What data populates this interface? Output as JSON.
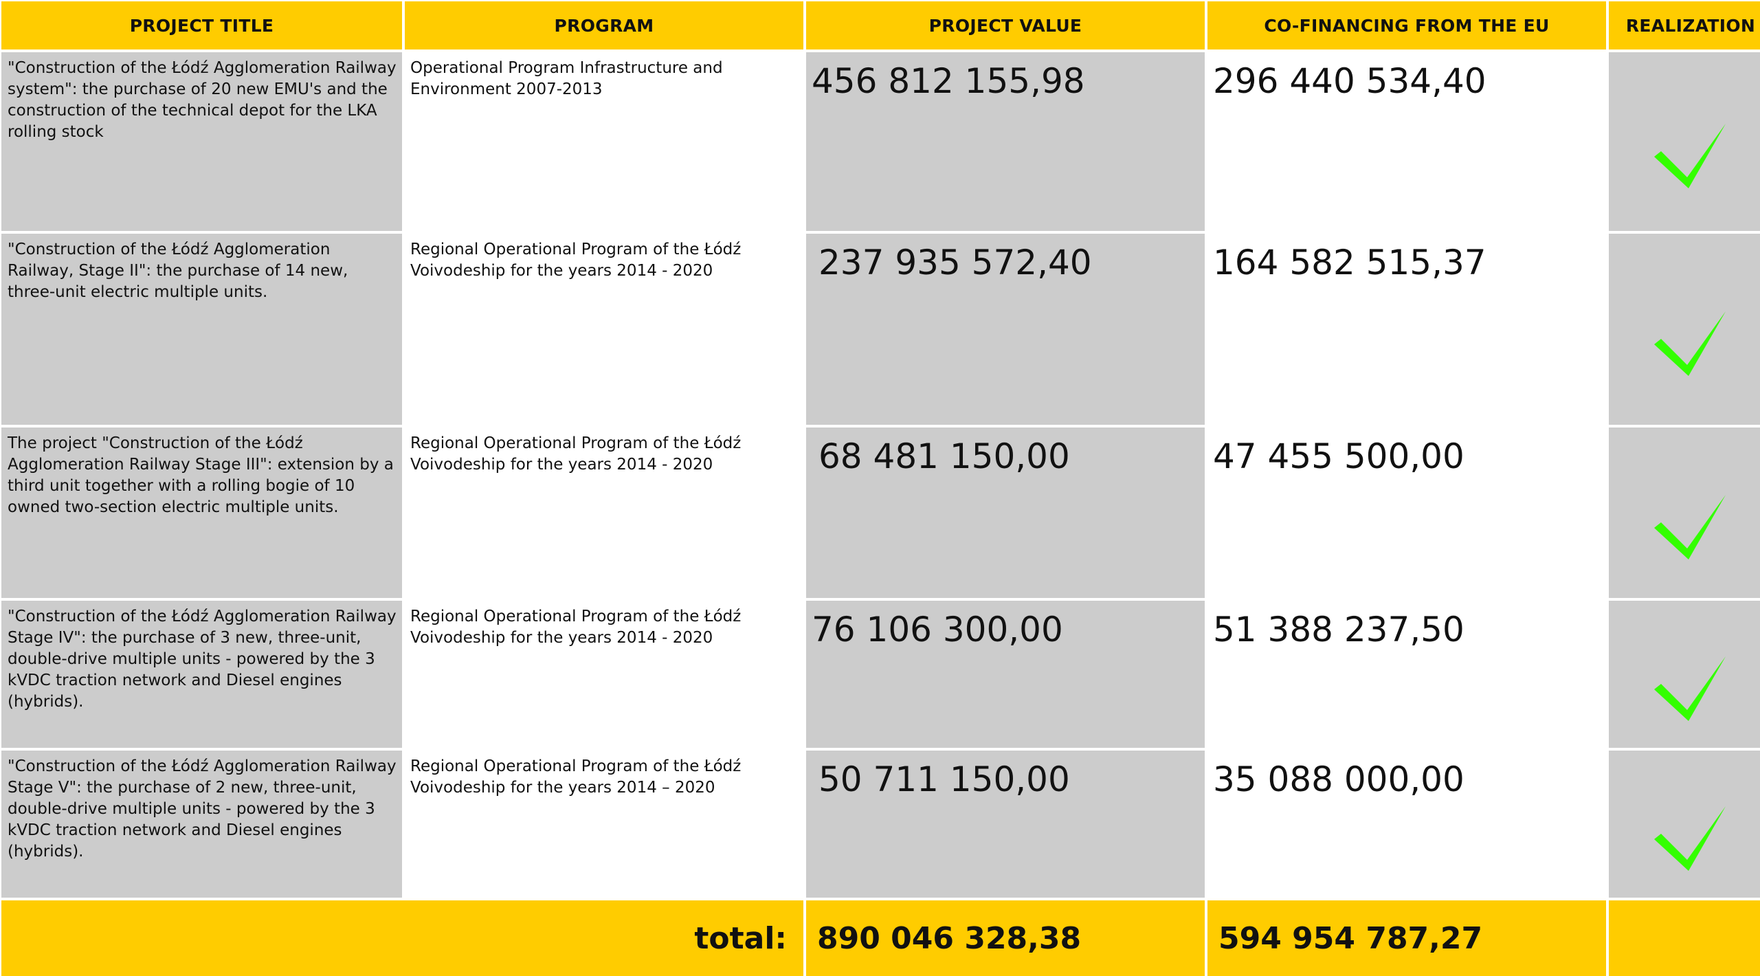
{
  "headers": {
    "project_title": "PROJECT TITLE",
    "program": "PROGRAM",
    "project_value": "PROJECT VALUE",
    "cofinancing": "CO-FINANCING FROM THE EU",
    "realization": "REALIZATION"
  },
  "rows": [
    {
      "title": "\"Construction of the Łódź Agglomeration Railway system\": the purchase of 20 new EMU's and the construction of the technical depot for the LKA rolling stock",
      "program": "Operational Program Infrastructure and Environment 2007-2013",
      "value": "456 812 155,98",
      "cofinancing": "296 440 534,40",
      "realization_icon": "checkmark-icon",
      "realized": true
    },
    {
      "title": "\"Construction of the Łódź Agglomeration Railway, Stage II\": the purchase of 14 new, three-unit electric multiple units.",
      "program": "Regional Operational Program of the Łódź Voivodeship for the years 2014 - 2020",
      "value": "237 935 572,40",
      "cofinancing": "164 582 515,37",
      "realization_icon": "checkmark-icon",
      "realized": true
    },
    {
      "title": "The project \"Construction of the Łódź Agglomeration Railway Stage III\": extension by a third unit together with a rolling bogie of 10 owned two-section electric multiple units.",
      "program": "Regional Operational Program of the Łódź Voivodeship for the years 2014 - 2020",
      "value": "68 481 150,00",
      "cofinancing": "47 455 500,00",
      "realization_icon": "checkmark-icon",
      "realized": true
    },
    {
      "title": "\"Construction of the Łódź Agglomeration Railway Stage IV\": the purchase of 3 new, three-unit, double-drive multiple units - powered by the 3 kVDC traction network and Diesel engines (hybrids).",
      "program": "Regional Operational Program of the Łódź Voivodeship for the years 2014 - 2020",
      "value": "76 106 300,00",
      "cofinancing": "51 388 237,50",
      "realization_icon": "checkmark-icon",
      "realized": true
    },
    {
      "title": "\"Construction of the Łódź Agglomeration Railway Stage V\": the purchase of 2 new, three-unit, double-drive multiple units - powered by the 3 kVDC traction network and Diesel engines (hybrids).",
      "program": "Regional Operational Program of the Łódź Voivodeship for the years 2014 – 2020",
      "value": "50 711 150,00",
      "cofinancing": "35 088 000,00",
      "realization_icon": "checkmark-icon",
      "realized": true
    }
  ],
  "totals": {
    "label": "total:",
    "value": "890 046 328,38",
    "cofinancing": "594 954 787,27"
  },
  "colors": {
    "header_yellow": "#ffcc00",
    "cell_grey": "#cccccc",
    "check_green": "#33ff00"
  }
}
